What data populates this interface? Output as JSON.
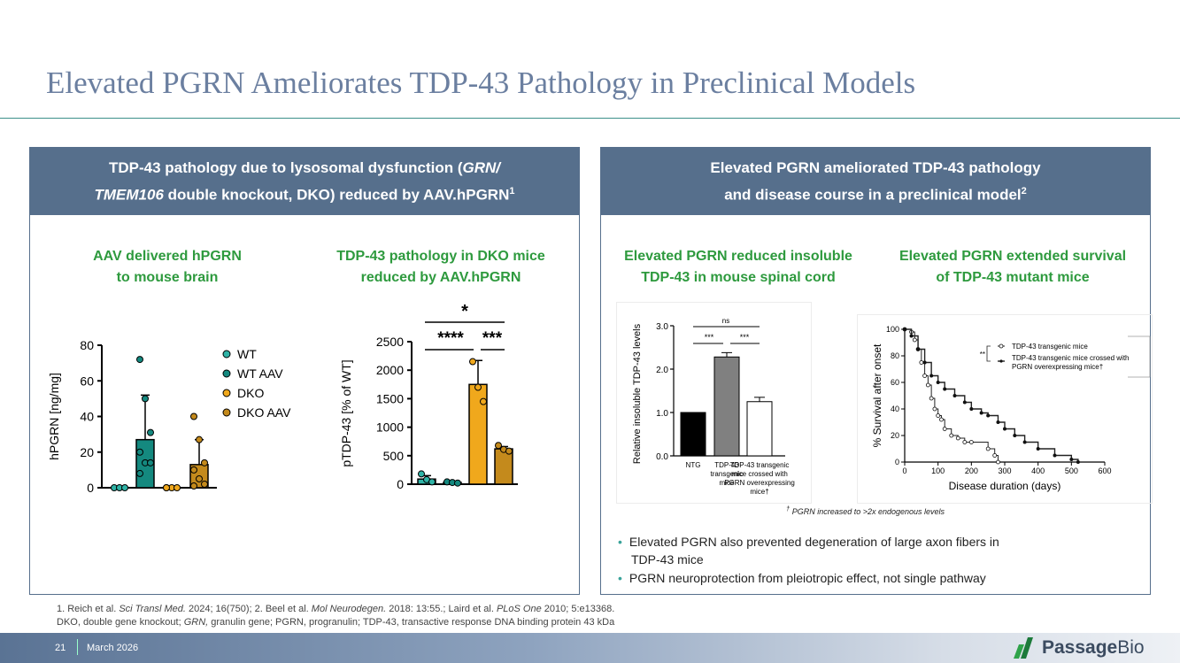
{
  "slide": {
    "title": "Elevated PGRN Ameliorates TDP-43 Pathology in Preclinical Models",
    "page_number": "21",
    "date": "March 2026",
    "logo_text_bold": "Passage",
    "logo_text": "Bio"
  },
  "left_panel": {
    "header_line1_a": "TDP-43 pathology due to lysosomal dysfunction (",
    "header_line1_b": "GRN/",
    "header_line2_a": "TMEM106",
    "header_line2_b": " double knockout, DKO) reduced by AAV.hPGRN",
    "header_sup": "1",
    "sub1_line1": "AAV delivered hPGRN",
    "sub1_line2": "to mouse brain",
    "sub2_line1": "TDP-43 pathology in DKO mice",
    "sub2_line2": "reduced by AAV.hPGRN"
  },
  "right_panel": {
    "header_line1": "Elevated PGRN ameliorated TDP-43 pathology",
    "header_line2": "and disease course in a preclinical model",
    "header_sup": "2",
    "sub1_line1": "Elevated PGRN reduced insoluble",
    "sub1_line2": "TDP-43 in mouse spinal cord",
    "sub2_line1": "Elevated PGRN extended survival",
    "sub2_line2": "of TDP-43 mutant mice",
    "footnote": "PGRN increased to >2x endogenous levels",
    "footnote_mark": "†",
    "bullets": [
      "Elevated PGRN also prevented degeneration of large axon fibers in",
      "TDP-43 mice",
      "PGRN neuroprotection from pleiotropic effect, not single pathway"
    ]
  },
  "references": {
    "line1_a": "1. Reich et al. ",
    "line1_b": "Sci Transl Med.",
    "line1_c": " 2024; 16(750); 2. Beel et al. ",
    "line1_d": "Mol Neurodegen.",
    "line1_e": " 2018: 13:55.; Laird et al. ",
    "line1_f": "PLoS One",
    "line1_g": " 2010; 5:e13368.",
    "line2_a": "DKO, double gene knockout; ",
    "line2_b": "GRN,",
    "line2_c": " granulin gene; PGRN, progranulin; TDP-43, transactive response DNA binding protein 43 kDa"
  },
  "colors": {
    "panel_header": "#566f8c",
    "subtitle_green": "#2e9a3e",
    "teal": "#14897f",
    "teal_light": "#2fb3a6",
    "orange": "#f0a81c",
    "orange_dark": "#c48a1c"
  },
  "chart_data": [
    {
      "type": "bar",
      "ylabel": "hPGRN [ng/mg]",
      "ylim": [
        0,
        80
      ],
      "yticks": [
        "0",
        "20",
        "40",
        "60",
        "80"
      ],
      "legend": [
        "WT",
        "WT AAV",
        "DKO",
        "DKO AAV"
      ],
      "series": [
        {
          "name": "WT",
          "value": 0,
          "points": [
            0,
            0,
            0
          ]
        },
        {
          "name": "WT AAV",
          "value": 27,
          "err": 25,
          "points": [
            72,
            50,
            31,
            20,
            14,
            14,
            8
          ]
        },
        {
          "name": "DKO",
          "value": 0,
          "points": [
            0,
            0,
            0,
            0
          ]
        },
        {
          "name": "DKO AAV",
          "value": 13,
          "err": 14,
          "points": [
            40,
            27,
            14,
            10,
            5,
            2,
            1
          ]
        }
      ]
    },
    {
      "type": "bar",
      "ylabel": "pTDP-43 [% of WT]",
      "ylim": [
        0,
        2500
      ],
      "yticks": [
        "0",
        "500",
        "1000",
        "1500",
        "2000",
        "2500"
      ],
      "significance": [
        "*",
        "****",
        "***"
      ],
      "series": [
        {
          "name": "WT",
          "value": 90,
          "err": 60,
          "points": [
            180,
            80,
            40
          ]
        },
        {
          "name": "WT AAV",
          "value": 30,
          "points": [
            40,
            30,
            20
          ]
        },
        {
          "name": "DKO",
          "value": 1750,
          "err": 420,
          "points": [
            2150,
            1700,
            1450
          ]
        },
        {
          "name": "DKO AAV",
          "value": 620,
          "err": 40,
          "points": [
            680,
            610,
            580
          ]
        }
      ]
    },
    {
      "type": "bar",
      "ylabel": "Relative insoluble TDP-43 levels",
      "ylim": [
        0,
        3.0
      ],
      "yticks": [
        "0.0",
        "1.0",
        "2.0",
        "3.0"
      ],
      "categories": [
        "NTG",
        "TDP-43 transgenic mice",
        "TDP-43 transgenic mice crossed with PGRN overexpressing mice†"
      ],
      "category_lines": [
        [
          "NTG"
        ],
        [
          "TDP-43",
          "transgenic",
          "mice"
        ],
        [
          "TDP-43 transgenic",
          "mice crossed with",
          "PGRN overexpressing",
          "mice†"
        ]
      ],
      "values": [
        1.0,
        2.28,
        1.25
      ],
      "errors": [
        0,
        0.1,
        0.1
      ],
      "significance": [
        "ns",
        "***",
        "***"
      ]
    },
    {
      "type": "line",
      "xlabel": "Disease duration (days)",
      "ylabel": "% Survival after onset",
      "xlim": [
        0,
        600
      ],
      "ylim": [
        0,
        100
      ],
      "xticks": [
        "0",
        "100",
        "200",
        "300",
        "400",
        "500",
        "600"
      ],
      "yticks": [
        "0",
        "20",
        "40",
        "60",
        "80",
        "100"
      ],
      "significance": "**",
      "series": [
        {
          "name": "TDP-43 transgenic mice",
          "x": [
            0,
            20,
            30,
            40,
            50,
            60,
            70,
            80,
            90,
            100,
            110,
            120,
            140,
            160,
            180,
            200,
            250,
            270,
            280
          ],
          "y": [
            100,
            98,
            92,
            85,
            75,
            65,
            58,
            48,
            40,
            35,
            32,
            25,
            20,
            18,
            15,
            15,
            10,
            5,
            0
          ]
        },
        {
          "name": "TDP-43 transgenic mice crossed with PGRN overexpressing mice†",
          "x": [
            0,
            20,
            40,
            60,
            80,
            100,
            120,
            150,
            180,
            200,
            230,
            250,
            280,
            300,
            330,
            360,
            400,
            450,
            500,
            520
          ],
          "y": [
            100,
            95,
            85,
            75,
            65,
            60,
            55,
            50,
            45,
            40,
            37,
            35,
            30,
            25,
            20,
            15,
            10,
            5,
            2,
            0
          ]
        }
      ]
    }
  ]
}
